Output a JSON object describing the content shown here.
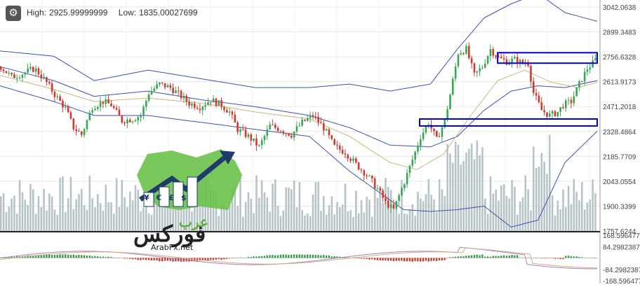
{
  "header": {
    "settings_icon": "gear-icon",
    "high_label": "High:",
    "high_value": "2925.99999999",
    "low_label": "Low:",
    "low_value": "1835.00027699"
  },
  "logo": {
    "site": "ArabFx.net",
    "word_dark": "فوركس",
    "word_green": "عرب",
    "currency_icons": [
      "¥",
      "€",
      "£",
      "$"
    ]
  },
  "colors": {
    "up": "#3aa655",
    "down": "#d03a2d",
    "bands": "#3b51b5",
    "ma": "#c9b77a",
    "volume": "#b7c4c7",
    "zone": "#0000cc",
    "hist_up": "#3b9b4a",
    "hist_down": "#c23b2b",
    "signal": "#c9b37a",
    "macd": "#b07ac0"
  },
  "chart_data": {
    "type": "candlestick",
    "indicators": [
      "Bollinger Bands",
      "Volume",
      "MACD"
    ],
    "price_axis": {
      "ticks": [
        3042.0638,
        2899.3483,
        2756.6328,
        2613.9173,
        2471.2018,
        2328.4864,
        2185.7709,
        2043.0554,
        1900.3399,
        1757.6244
      ],
      "tick_labels": [
        "3042.0638",
        "2899.3483",
        "2756.6328",
        "2613.9173",
        "2471.2018",
        "2328.4864",
        "2185.7709",
        "2043.0554",
        "1900.3399",
        "1757.6244"
      ],
      "ylim": [
        1757.6244,
        3042.0638
      ]
    },
    "macd_axis": {
      "ticks": [
        168.596477,
        84.2982387,
        -84.2982387,
        -168.596477
      ],
      "tick_labels": [
        "168.596477",
        "84.2982387",
        "-84.2982387",
        "-168.596477"
      ],
      "ylim": [
        -168.596477,
        168.596477
      ]
    },
    "candles": 222,
    "close_path": [
      [
        0,
        2700
      ],
      [
        8,
        2640
      ],
      [
        16,
        2660
      ],
      [
        25,
        2690
      ],
      [
        33,
        2620
      ],
      [
        40,
        2540
      ],
      [
        48,
        2460
      ],
      [
        54,
        2350
      ],
      [
        60,
        2310
      ],
      [
        68,
        2470
      ],
      [
        76,
        2500
      ],
      [
        82,
        2480
      ],
      [
        90,
        2390
      ],
      [
        98,
        2400
      ],
      [
        104,
        2420
      ],
      [
        110,
        2550
      ],
      [
        118,
        2600
      ],
      [
        126,
        2580
      ],
      [
        134,
        2530
      ],
      [
        140,
        2490
      ],
      [
        148,
        2470
      ],
      [
        156,
        2510
      ],
      [
        164,
        2480
      ],
      [
        170,
        2440
      ],
      [
        176,
        2340
      ],
      [
        184,
        2300
      ],
      [
        192,
        2240
      ],
      [
        200,
        2360
      ],
      [
        208,
        2340
      ],
      [
        216,
        2310
      ],
      [
        224,
        2380
      ],
      [
        232,
        2420
      ],
      [
        240,
        2350
      ],
      [
        248,
        2240
      ],
      [
        256,
        2210
      ],
      [
        264,
        2140
      ],
      [
        272,
        2080
      ],
      [
        280,
        2000
      ],
      [
        286,
        1920
      ],
      [
        292,
        1880
      ],
      [
        300,
        2040
      ],
      [
        308,
        2210
      ],
      [
        312,
        2300
      ],
      [
        318,
        2380
      ],
      [
        324,
        2280
      ],
      [
        330,
        2390
      ],
      [
        334,
        2540
      ],
      [
        340,
        2780
      ],
      [
        346,
        2800
      ],
      [
        352,
        2650
      ],
      [
        358,
        2700
      ],
      [
        364,
        2800
      ],
      [
        370,
        2750
      ],
      [
        376,
        2730
      ],
      [
        382,
        2740
      ],
      [
        388,
        2720
      ],
      [
        392,
        2720
      ],
      [
        396,
        2550
      ],
      [
        402,
        2450
      ],
      [
        408,
        2420
      ],
      [
        414,
        2440
      ],
      [
        418,
        2480
      ],
      [
        424,
        2500
      ],
      [
        430,
        2600
      ],
      [
        436,
        2690
      ],
      [
        440,
        2720
      ],
      [
        444,
        2760
      ]
    ],
    "upper_band": [
      [
        0,
        2790
      ],
      [
        40,
        2760
      ],
      [
        70,
        2620
      ],
      [
        110,
        2680
      ],
      [
        150,
        2630
      ],
      [
        190,
        2580
      ],
      [
        230,
        2580
      ],
      [
        260,
        2600
      ],
      [
        290,
        2560
      ],
      [
        320,
        2600
      ],
      [
        340,
        2800
      ],
      [
        360,
        2980
      ],
      [
        380,
        3060
      ],
      [
        400,
        3120
      ],
      [
        420,
        3010
      ],
      [
        444,
        2960
      ]
    ],
    "middle_band": [
      [
        0,
        2700
      ],
      [
        40,
        2620
      ],
      [
        70,
        2530
      ],
      [
        110,
        2560
      ],
      [
        150,
        2510
      ],
      [
        190,
        2470
      ],
      [
        230,
        2420
      ],
      [
        260,
        2350
      ],
      [
        290,
        2250
      ],
      [
        320,
        2240
      ],
      [
        340,
        2300
      ],
      [
        360,
        2450
      ],
      [
        380,
        2560
      ],
      [
        400,
        2590
      ],
      [
        420,
        2580
      ],
      [
        444,
        2620
      ]
    ],
    "lower_band": [
      [
        0,
        2590
      ],
      [
        40,
        2500
      ],
      [
        70,
        2420
      ],
      [
        110,
        2420
      ],
      [
        150,
        2380
      ],
      [
        190,
        2340
      ],
      [
        230,
        2300
      ],
      [
        260,
        2100
      ],
      [
        280,
        1990
      ],
      [
        300,
        1880
      ],
      [
        320,
        1870
      ],
      [
        340,
        1880
      ],
      [
        360,
        1900
      ],
      [
        380,
        1780
      ],
      [
        400,
        1820
      ],
      [
        420,
        2150
      ],
      [
        444,
        2330
      ]
    ],
    "moving_average": [
      [
        0,
        2650
      ],
      [
        40,
        2570
      ],
      [
        70,
        2500
      ],
      [
        110,
        2520
      ],
      [
        150,
        2490
      ],
      [
        190,
        2440
      ],
      [
        230,
        2400
      ],
      [
        260,
        2300
      ],
      [
        290,
        2150
      ],
      [
        310,
        2110
      ],
      [
        330,
        2200
      ],
      [
        350,
        2420
      ],
      [
        370,
        2620
      ],
      [
        390,
        2680
      ],
      [
        410,
        2610
      ],
      [
        430,
        2580
      ],
      [
        444,
        2610
      ]
    ],
    "zones": [
      {
        "low": 2720,
        "high": 2780,
        "from": 370,
        "to": 444
      },
      {
        "low": 2360,
        "high": 2400,
        "from": 312,
        "to": 444
      }
    ]
  }
}
